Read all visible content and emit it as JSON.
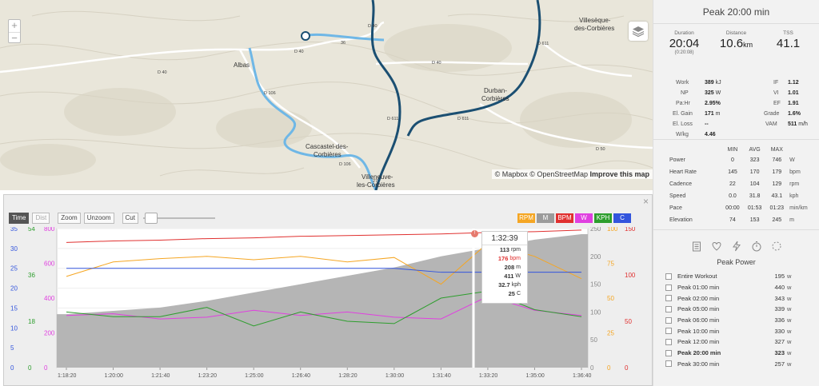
{
  "map": {
    "zoom_in": "+",
    "zoom_out": "−",
    "place_labels": [
      "Villesèque-",
      "des-Corbières",
      "Albas",
      "Durban-",
      "Corbières",
      "Cascastel-des-",
      "Corbières",
      "Villeneuve-",
      "les-Corbières"
    ],
    "road_labels": [
      "D 40",
      "36",
      "D 40",
      "D 40",
      "D 40",
      "D 106",
      "D 611",
      "D 611",
      "D 106",
      "D 50",
      "27",
      "D 611"
    ],
    "attribution": {
      "mapbox": "© Mapbox",
      "osm": "© OpenStreetMap",
      "improve": "Improve this map"
    },
    "colors": {
      "route": "#1b4f72",
      "segment": "#6fb7e6",
      "road": "#ffffff"
    }
  },
  "chart": {
    "controls": {
      "time": "Time",
      "dist": "Dist",
      "zoom": "Zoom",
      "unzoom": "Unzoom",
      "cut": "Cut"
    },
    "series_buttons": [
      {
        "label": "RPM",
        "color": "#f5a623"
      },
      {
        "label": "M",
        "color": "#9b9b9b"
      },
      {
        "label": "BPM",
        "color": "#e0302f"
      },
      {
        "label": "W",
        "color": "#e040e0"
      },
      {
        "label": "KPH",
        "color": "#2d9e2d"
      },
      {
        "label": "C",
        "color": "#3355dd"
      }
    ],
    "close": "×",
    "left_axes": [
      {
        "color": "#3355dd",
        "ticks": [
          "35",
          "30",
          "25",
          "20",
          "15",
          "10",
          "5",
          "0"
        ]
      },
      {
        "color": "#2d9e2d",
        "ticks": [
          "54",
          "36",
          "18",
          "0"
        ]
      },
      {
        "color": "#e040e0",
        "ticks": [
          "800",
          "600",
          "400",
          "200",
          "0"
        ]
      }
    ],
    "right_axes": [
      {
        "color": "#888888",
        "ticks": [
          "250",
          "200",
          "150",
          "100",
          "50",
          "0"
        ]
      },
      {
        "color": "#f5a623",
        "ticks": [
          "100",
          "75",
          "50",
          "25",
          "0"
        ]
      },
      {
        "color": "#e0302f",
        "ticks": [
          "150",
          "100",
          "50",
          "0"
        ]
      }
    ],
    "x_ticks": [
      "1:18:20",
      "1:20:00",
      "1:21:40",
      "1:23:20",
      "1:25:00",
      "1:26:40",
      "1:28:20",
      "1:30:00",
      "1:31:40",
      "1:33:20",
      "1:35:00",
      "1:36:40"
    ],
    "tooltip": {
      "time": "1:32:39",
      "marker": "!",
      "rows": [
        {
          "value": "113",
          "unit": "rpm",
          "color": "#333333"
        },
        {
          "value": "176",
          "unit": "bpm",
          "color": "#e0302f"
        },
        {
          "value": "208",
          "unit": "m",
          "color": "#333333"
        },
        {
          "value": "411",
          "unit": "W",
          "color": "#333333"
        },
        {
          "value": "32.7",
          "unit": "kph",
          "color": "#333333"
        },
        {
          "value": "25",
          "unit": "C",
          "color": "#333333"
        }
      ]
    }
  },
  "chart_data": {
    "type": "line",
    "x_labels": [
      "1:18:20",
      "1:20:00",
      "1:21:40",
      "1:23:20",
      "1:25:00",
      "1:26:40",
      "1:28:20",
      "1:30:00",
      "1:31:40",
      "1:33:20",
      "1:35:00",
      "1:36:40"
    ],
    "cursor": "1:32:39",
    "series": [
      {
        "name": "M",
        "color": "#9b9b9b",
        "values": [
          96,
          102,
          108,
          120,
          135,
          150,
          165,
          180,
          200,
          215,
          230,
          240
        ]
      },
      {
        "name": "BPM",
        "color": "#e0302f",
        "values": [
          162,
          164,
          165,
          167,
          168,
          170,
          171,
          172,
          173,
          175,
          176,
          178
        ]
      },
      {
        "name": "RPM",
        "color": "#f5a623",
        "values": [
          82,
          95,
          98,
          100,
          97,
          100,
          95,
          99,
          75,
          112,
          100,
          80
        ]
      },
      {
        "name": "W",
        "color": "#e040e0",
        "values": [
          300,
          310,
          280,
          290,
          330,
          300,
          320,
          290,
          280,
          410,
          330,
          300
        ]
      },
      {
        "name": "KPH",
        "color": "#2d9e2d",
        "values": [
          24,
          22,
          22,
          26,
          18,
          24,
          20,
          19,
          30,
          33,
          25,
          22
        ]
      },
      {
        "name": "C",
        "color": "#3355dd",
        "values": [
          25,
          25,
          25,
          25,
          25,
          25,
          25,
          25,
          24,
          24,
          24,
          24
        ]
      }
    ]
  },
  "side": {
    "title": "Peak 20:00 min",
    "summary": [
      {
        "label": "Duration",
        "value": "20:04",
        "unit": "",
        "sub": "(0:20:08)"
      },
      {
        "label": "Distance",
        "value": "10.6",
        "unit": "km",
        "sub": ""
      },
      {
        "label": "TSS",
        "value": "41.1",
        "unit": "",
        "sub": ""
      }
    ],
    "left_stats": [
      {
        "k": "Work",
        "v": "389",
        "u": "kJ"
      },
      {
        "k": "NP",
        "v": "325",
        "u": "W"
      },
      {
        "k": "Pa:Hr",
        "v": "2.95%",
        "u": ""
      },
      {
        "k": "El. Gain",
        "v": "171",
        "u": "m"
      },
      {
        "k": "El. Loss",
        "v": "--",
        "u": ""
      },
      {
        "k": "W/kg",
        "v": "4.46",
        "u": ""
      }
    ],
    "right_stats": [
      {
        "k": "IF",
        "v": "1.12",
        "u": ""
      },
      {
        "k": "VI",
        "v": "1.01",
        "u": ""
      },
      {
        "k": "EF",
        "v": "1.91",
        "u": ""
      },
      {
        "k": "Grade",
        "v": "1.6%",
        "u": ""
      },
      {
        "k": "VAM",
        "v": "511",
        "u": "m/h"
      }
    ],
    "table_headers": [
      "MIN",
      "AVG",
      "MAX"
    ],
    "table_rows": [
      {
        "name": "Power",
        "min": "0",
        "avg": "323",
        "max": "746",
        "unit": "W"
      },
      {
        "name": "Heart Rate",
        "min": "145",
        "avg": "170",
        "max": "179",
        "unit": "bpm"
      },
      {
        "name": "Cadence",
        "min": "22",
        "avg": "104",
        "max": "129",
        "unit": "rpm"
      },
      {
        "name": "Speed",
        "min": "0.0",
        "avg": "31.8",
        "max": "43.1",
        "unit": "kph"
      },
      {
        "name": "Pace",
        "min": "00:00",
        "avg": "01:53",
        "max": "01:23",
        "unit": "min/km"
      },
      {
        "name": "Elevation",
        "min": "74",
        "avg": "153",
        "max": "245",
        "unit": "m"
      }
    ],
    "icons": [
      "clipboard-icon",
      "heart-icon",
      "lightning-icon",
      "stopwatch-icon",
      "dashed-circle-icon"
    ],
    "peak_title": "Peak Power",
    "peak_items": [
      {
        "name": "Entire Workout",
        "value": "195",
        "unit": "w"
      },
      {
        "name": "Peak 01:00 min",
        "value": "440",
        "unit": "w"
      },
      {
        "name": "Peak 02:00 min",
        "value": "343",
        "unit": "w"
      },
      {
        "name": "Peak 05:00 min",
        "value": "339",
        "unit": "w"
      },
      {
        "name": "Peak 06:00 min",
        "value": "336",
        "unit": "w"
      },
      {
        "name": "Peak 10:00 min",
        "value": "330",
        "unit": "w"
      },
      {
        "name": "Peak 12:00 min",
        "value": "327",
        "unit": "w"
      },
      {
        "name": "Peak 20:00 min",
        "value": "323",
        "unit": "w"
      },
      {
        "name": "Peak 30:00 min",
        "value": "257",
        "unit": "w"
      }
    ]
  }
}
